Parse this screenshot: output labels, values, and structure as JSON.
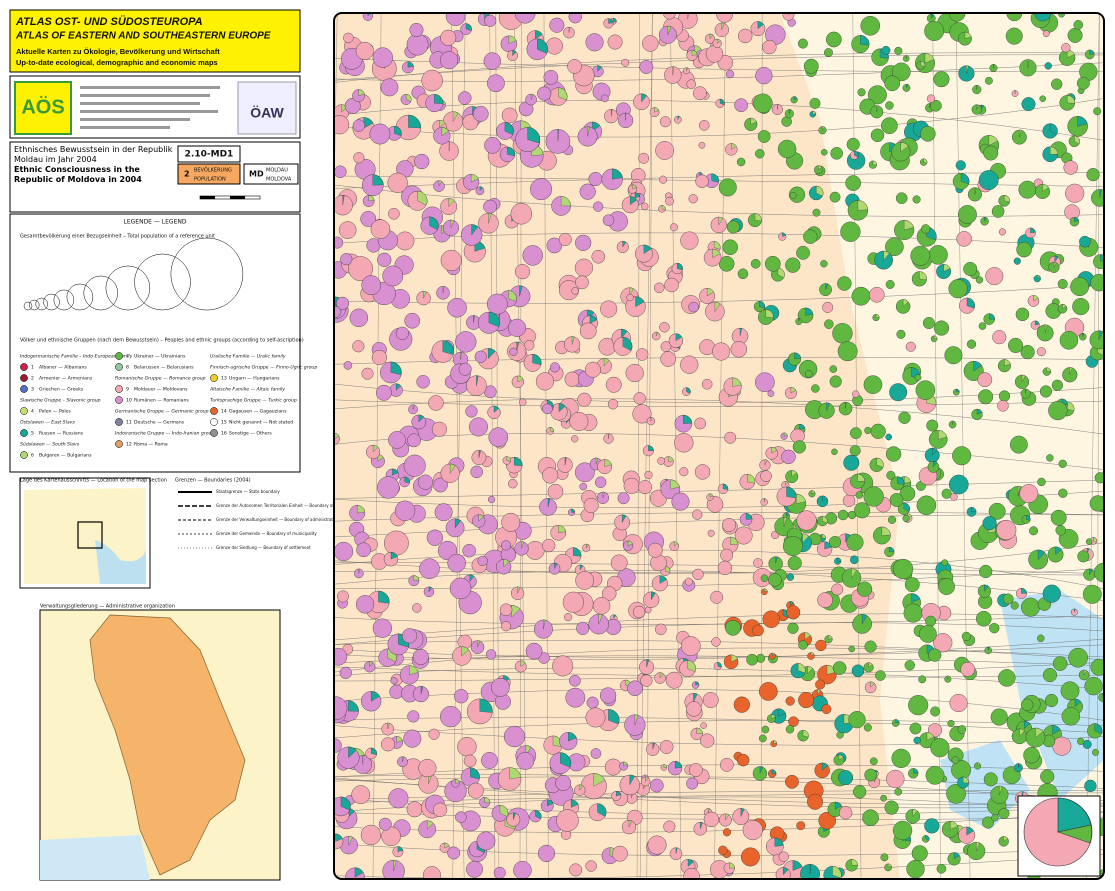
{
  "header": {
    "title_de": "ATLAS OST- UND SÜDOSTEUROPA",
    "title_en": "ATLAS OF EASTERN AND SOUTHEASTERN EUROPE",
    "subtitle_de": "Aktuelle Karten zu Ökologie, Bevölkerung und Wirtschaft",
    "subtitle_en": "Up-to-date ecological, demographic and economic maps",
    "logo": "AÖS",
    "institute": "ÖAW"
  },
  "sheet": {
    "title_de": "Ethnisches Bewusstsein in der Republik Moldau im Jahr 2004",
    "title_en": "Ethnic Consciousness in the Republic of Moldova in 2004",
    "code": "2.10-MD1",
    "topic_no": "2",
    "topic_de": "BEVÖLKERUNG",
    "topic_en": "POPULATION",
    "country_code": "MD",
    "country_de": "MOLDAU",
    "country_en": "MOLDOVA"
  },
  "legend": {
    "title": "LEGENDE — LEGEND",
    "size_heading": "Gesamtbevölkerung einer Bezugseinheit – Total population of a reference unit",
    "groups_heading": "Völker und ethnische Gruppen (nach dem Bewusstsein) – Peoples and ethnic groups (according to self-ascription)",
    "columns": [
      [
        {
          "heading": "Indogermanische Familie – Indo-European family"
        },
        {
          "no": "1",
          "label": "Albaner — Albanians",
          "color": "#d02050"
        },
        {
          "no": "2",
          "label": "Armenier — Armenians",
          "color": "#a01830"
        },
        {
          "no": "3",
          "label": "Griechen — Greeks",
          "color": "#5070c0"
        },
        {
          "heading": "Slawische Gruppe – Slavonic group"
        },
        {
          "no": "4",
          "label": "Polen — Poles",
          "color": "#c8e070"
        },
        {
          "heading": "Ostslawen — East Slavs"
        },
        {
          "no": "5",
          "label": "Russen — Russians",
          "color": "#18a898"
        },
        {
          "heading": "Südslawen — South Slavs"
        },
        {
          "no": "6",
          "label": "Bulgaren — Bulgarians",
          "color": "#b0d870"
        }
      ],
      [
        {
          "no": "7",
          "label": "Ukrainer — Ukrainians",
          "color": "#60b840"
        },
        {
          "no": "8",
          "label": "Belarussen — Belarusians",
          "color": "#90c8a0"
        },
        {
          "heading": "Romanische Gruppe — Romance group"
        },
        {
          "no": "9",
          "label": "Moldauer — Moldovans",
          "color": "#f4a8b4"
        },
        {
          "no": "10",
          "label": "Rumänen — Romanians",
          "color": "#d890d0"
        },
        {
          "heading": "Germanische Gruppe — Germanic group"
        },
        {
          "no": "11",
          "label": "Deutsche — Germans",
          "color": "#8080a0"
        },
        {
          "heading": "Indoiranische Gruppe — Indo-Iranian group"
        },
        {
          "no": "12",
          "label": "Roma — Roma",
          "color": "#e0a060"
        }
      ],
      [
        {
          "heading": "Uralische Familie — Uralic family"
        },
        {
          "heading": "Finnisch-ugrische Gruppe — Finno-Ugric group"
        },
        {
          "no": "13",
          "label": "Ungarn — Hungarians",
          "color": "#f0d020"
        },
        {
          "heading": "Altaische Familie — Altaic family"
        },
        {
          "heading": "Turksprachige Gruppe — Turkic group"
        },
        {
          "no": "14",
          "label": "Gagausen — Gagauzians",
          "color": "#e8642a"
        },
        {
          "no": "15",
          "label": "Nicht genannt — Not stated",
          "color": "#ffffff"
        },
        {
          "no": "16",
          "label": "Sonstige — Others",
          "color": "#909090"
        }
      ]
    ],
    "location_heading": "Lage des Kartenausschnitts — Location of the map section",
    "boundaries_heading": "Grenzen — Boundaries (2004)",
    "boundaries": [
      "Staatsgrenze — State boundary",
      "Grenze der Autonomen Territorialen Einheit — Boundary of the autonomous territorial unit",
      "Grenze der Verwaltungseinheit — Boundary of administrative unit",
      "Grenze der Gemeinde — Boundary of municipality",
      "Grenze der Siedlung — Boundary of settlement"
    ],
    "admin_heading": "Verwaltungsgliederung — Administrative organization"
  }
}
